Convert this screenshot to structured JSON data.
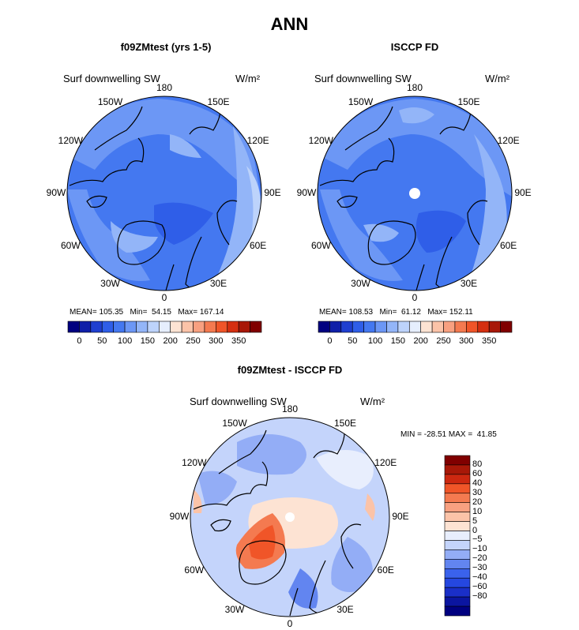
{
  "title": "ANN",
  "panels": [
    {
      "name": "model",
      "title": "f09ZMtest (yrs 1-5)",
      "var": "Surf downwelling SW",
      "units": "W/m²",
      "stats": {
        "mean_label": "MEAN=",
        "mean": "105.35",
        "min_label": "Min=",
        "min": "54.15",
        "max_label": "Max=",
        "max": "167.14"
      }
    },
    {
      "name": "obs",
      "title": "ISCCP FD",
      "var": "Surf downwelling SW",
      "units": "W/m²",
      "stats": {
        "mean_label": "MEAN=",
        "mean": "108.53",
        "min_label": "Min=",
        "min": "61.12",
        "max_label": "Max=",
        "max": "152.11"
      }
    },
    {
      "name": "diff",
      "title": "f09ZMtest - ISCCP FD",
      "var": "Surf downwelling SW",
      "units": "W/m²",
      "stats": {
        "min_label": "MIN =",
        "min": "-28.51",
        "max_label": "MAX =",
        "max": "41.85"
      }
    }
  ],
  "lon_labels": [
    "180",
    "150E",
    "120E",
    "90E",
    "60E",
    "30E",
    "0",
    "30W",
    "60W",
    "90W",
    "120W",
    "150W"
  ],
  "colorbar_top": {
    "colors": [
      "#000080",
      "#0f1fa8",
      "#1f3fd0",
      "#2f5ee8",
      "#4478f0",
      "#6c97f5",
      "#93b5f8",
      "#bdd3fb",
      "#e6eefd",
      "#fde3d3",
      "#fbc3a8",
      "#f8a080",
      "#f47a50",
      "#f05528",
      "#d52f10",
      "#a81808",
      "#800000"
    ],
    "ticks": [
      "0",
      "50",
      "100",
      "150",
      "200",
      "250",
      "300",
      "350"
    ]
  },
  "colorbar_diff": {
    "colors": [
      "#000080",
      "#0b15a0",
      "#1a2fc8",
      "#2547e0",
      "#3a62ec",
      "#6285f0",
      "#93adf6",
      "#c4d4fb",
      "#e8eefd",
      "#fde3d3",
      "#fbc3a8",
      "#f8a080",
      "#f47a50",
      "#f05528",
      "#cd2810",
      "#a81808",
      "#800000"
    ],
    "ticks": [
      "80",
      "60",
      "40",
      "30",
      "20",
      "10",
      "5",
      "0",
      "−5",
      "−10",
      "−20",
      "−30",
      "−40",
      "−60",
      "−80"
    ]
  },
  "map_colors": {
    "ocean_dark": "#2f5ee8",
    "ocean_mid": "#4478f0",
    "ice": "#6c97f5",
    "light": "#93b5f8",
    "pale": "#bdd3fb",
    "diff_pale": "#e8eefd",
    "diff_warm": "#fbc3a8",
    "diff_hot": "#f47a50",
    "land_outline": "#000000"
  }
}
